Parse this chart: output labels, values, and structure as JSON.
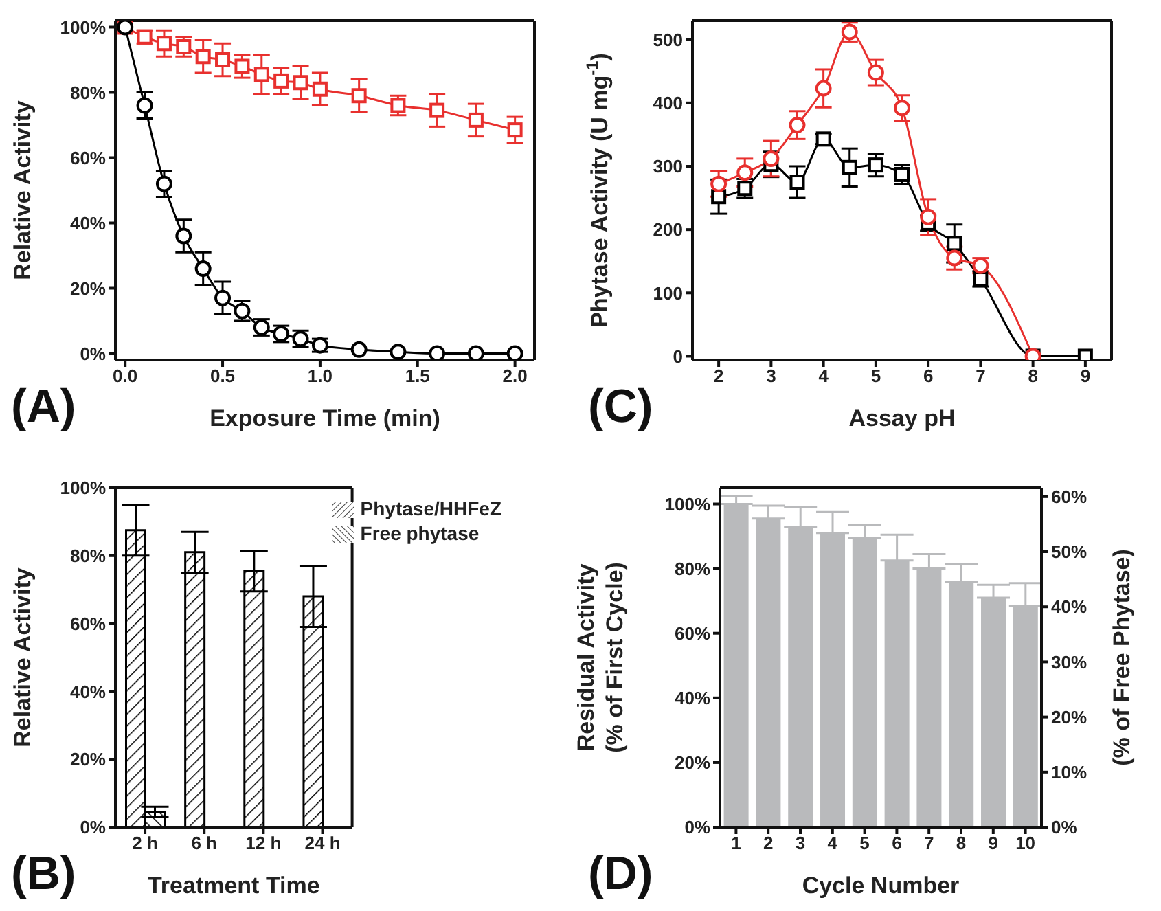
{
  "chart_data": [
    {
      "type": "line",
      "xlabel": "Exposure Time (min)",
      "ylabel": "Relative Activity",
      "annotations": [
        "(A)"
      ],
      "xlim": [
        -0.05,
        2.1
      ],
      "xticks": [
        {
          "value": 0,
          "label": "0.0"
        },
        0.5,
        {
          "value": 1,
          "label": "1.0"
        },
        1.5,
        {
          "value": 2,
          "label": "2.0"
        }
      ],
      "ylim": [
        -2,
        102
      ],
      "yticks": [
        {
          "value": 0,
          "label": "0%"
        },
        {
          "value": 20,
          "label": "20%"
        },
        {
          "value": 40,
          "label": "40%"
        },
        {
          "value": 60,
          "label": "60%"
        },
        {
          "value": 80,
          "label": "80%"
        },
        {
          "value": 100,
          "label": "100%"
        }
      ],
      "x": [
        0,
        0.1,
        0.2,
        0.3,
        0.4,
        0.5,
        0.6,
        0.7,
        0.8,
        0.9,
        1.0,
        1.2,
        1.4,
        1.6,
        1.8,
        2.0
      ],
      "series": [
        {
          "color": "#e8302e",
          "marker": "square",
          "values": [
            100,
            97,
            95,
            94,
            91,
            90,
            88,
            85.5,
            83.5,
            83,
            81,
            79,
            76,
            74.5,
            71.5,
            68.5
          ],
          "errors": [
            null,
            2,
            4,
            3,
            5,
            5,
            3.5,
            6,
            4,
            5,
            5,
            5,
            3,
            5,
            5,
            4
          ]
        },
        {
          "color": "#000000",
          "marker": "circle",
          "values": [
            100,
            76,
            52,
            36,
            26,
            17,
            13,
            8,
            6,
            4.5,
            2.5,
            1.2,
            0.5,
            0,
            0,
            0
          ],
          "errors": [
            null,
            4,
            4,
            5,
            5,
            5,
            3,
            2.5,
            2.5,
            2.5,
            2,
            null,
            null,
            null,
            null,
            null
          ]
        }
      ]
    },
    {
      "type": "line",
      "xlabel": "Assay pH",
      "ylabel": "Phytase Activity (U mg$^{-1}$)",
      "annotations": [
        "(C)"
      ],
      "xlim": [
        1.5,
        9.5
      ],
      "xticks": [
        2,
        3,
        4,
        5,
        6,
        7,
        8,
        9
      ],
      "ylim": [
        -6,
        530
      ],
      "yticks": [
        0,
        100,
        200,
        300,
        400,
        500
      ],
      "series": [
        {
          "color": "#000000",
          "marker": "square",
          "x": [
            2,
            2.5,
            3,
            3.5,
            4,
            4.5,
            5,
            5.5,
            6,
            6.5,
            7,
            8,
            9
          ],
          "values": [
            252,
            265,
            303,
            275,
            343,
            298,
            302,
            287,
            210,
            178,
            122,
            0,
            0
          ],
          "errors": [
            27,
            15,
            20,
            25,
            8,
            30,
            18,
            15,
            12,
            30,
            12,
            null,
            null
          ]
        },
        {
          "color": "#e8302e",
          "marker": "circle",
          "x": [
            2,
            2.5,
            3,
            3.5,
            4,
            4.5,
            5,
            5.5,
            6,
            6.5,
            7,
            8
          ],
          "values": [
            272,
            290,
            312,
            365,
            423,
            512,
            448,
            392,
            220,
            155,
            143,
            0
          ],
          "errors": [
            20,
            22,
            28,
            22,
            30,
            15,
            20,
            20,
            28,
            18,
            12,
            null
          ]
        }
      ]
    },
    {
      "type": "bar",
      "xlabel": "Treatment Time",
      "ylabel": "Relative Activity",
      "annotations": [
        "(B)"
      ],
      "categories": [
        "2 h",
        "6 h",
        "12 h",
        "24 h"
      ],
      "ylim": [
        0,
        100
      ],
      "yticks": [
        {
          "value": 0,
          "label": "0%"
        },
        {
          "value": 20,
          "label": "20%"
        },
        {
          "value": 40,
          "label": "40%"
        },
        {
          "value": 60,
          "label": "60%"
        },
        {
          "value": 80,
          "label": "80%"
        },
        {
          "value": 100,
          "label": "100%"
        }
      ],
      "legend": "top right",
      "series": [
        {
          "name": "Phytase/HHFeZ",
          "color": "#000000",
          "values": [
            87.5,
            81,
            75.5,
            68
          ],
          "errors": [
            7.5,
            6,
            6,
            9
          ]
        },
        {
          "name": "Free phytase",
          "color": "#000000",
          "values": [
            4.5,
            null,
            null,
            null
          ],
          "errors": [
            1.5,
            null,
            null,
            null
          ]
        }
      ]
    },
    {
      "type": "bar",
      "xlabel": "Cycle Number",
      "ylabel": "Residual Activity\n(% of First Cycle)",
      "y2label": "(% of Free Phytase)",
      "annotations": [
        "(D)"
      ],
      "categories": [
        "1",
        "2",
        "3",
        "4",
        "5",
        "6",
        "7",
        "8",
        "9",
        "10"
      ],
      "ylim": [
        0,
        105
      ],
      "yticks": [
        {
          "value": 0,
          "label": "0%"
        },
        {
          "value": 20,
          "label": "20%"
        },
        {
          "value": 40,
          "label": "40%"
        },
        {
          "value": 60,
          "label": "60%"
        },
        {
          "value": 80,
          "label": "80%"
        },
        {
          "value": 100,
          "label": "100%"
        }
      ],
      "y2lim": [
        0,
        61.6
      ],
      "y2ticks": [
        {
          "value": 0,
          "label": "0%"
        },
        {
          "value": 10,
          "label": "10%"
        },
        {
          "value": 20,
          "label": "20%"
        },
        {
          "value": 30,
          "label": "30%"
        },
        {
          "value": 40,
          "label": "40%"
        },
        {
          "value": 50,
          "label": "50%"
        },
        {
          "value": 60,
          "label": "60%"
        }
      ],
      "series": [
        {
          "color": "#b9babc",
          "values": [
            100,
            95.5,
            93,
            91,
            89.5,
            82.5,
            80,
            76,
            71,
            68.5
          ],
          "errors": [
            [
              100,
              102.5
            ],
            [
              95.5,
              99.5
            ],
            [
              93,
              99
            ],
            [
              91,
              97.5
            ],
            [
              89.5,
              93.5
            ],
            [
              82.5,
              90.5
            ],
            [
              80,
              84.5
            ],
            [
              76,
              81.5
            ],
            [
              71,
              75
            ],
            [
              68.5,
              75.5
            ]
          ]
        }
      ]
    }
  ]
}
